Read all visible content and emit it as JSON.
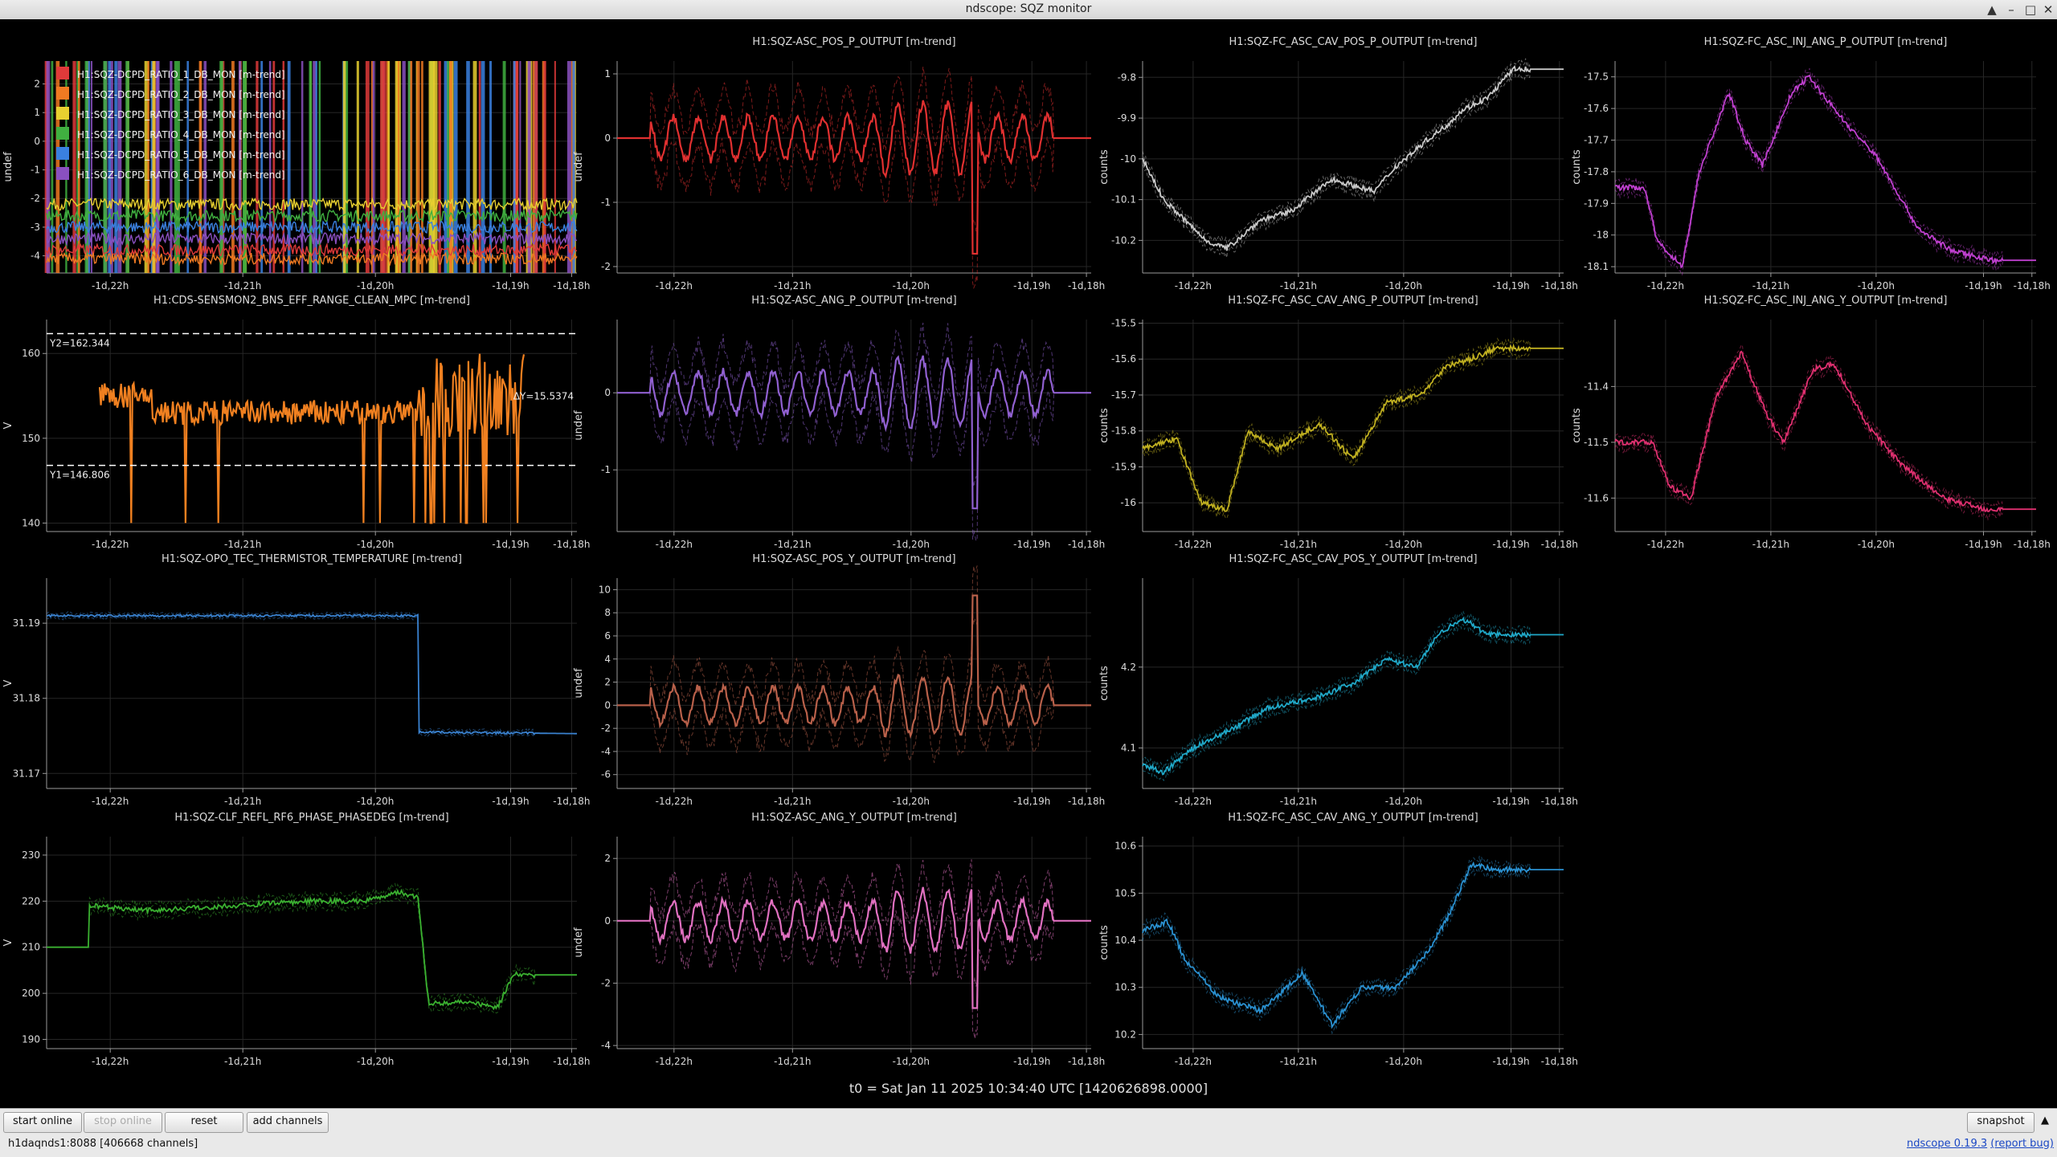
{
  "window": {
    "title": "ndscope: SQZ monitor"
  },
  "window_controls": [
    "▲",
    "–",
    "□",
    "✕"
  ],
  "t0_label": "t0 = Sat Jan 11 2025 10:34:40 UTC [1420626898.0000]",
  "x_ticks": [
    "-1d,22h",
    "-1d,21h",
    "-1d,20h",
    "-1d,19h",
    "-1d,18h"
  ],
  "toolbar": {
    "start_online": "start online",
    "stop_online": "stop online",
    "reset": "reset",
    "add_channels": "add channels",
    "snapshot": "snapshot",
    "expand_arrow": "▲"
  },
  "status": {
    "server": "h1daqnds1:8088  [406668 channels]"
  },
  "version": {
    "app": "ndscope 0.19.3",
    "report": "(report bug)"
  },
  "colors": {
    "background": "#000000",
    "grid": "#262626",
    "axis": "#9a9a9a",
    "text": "#dcdcdc"
  },
  "plots": [
    {
      "id": "dcpd",
      "title": "",
      "ylabel": "undef",
      "ylim": [
        -4.6,
        2.8
      ],
      "yticks": [
        2,
        1,
        0,
        -1,
        -2,
        -3,
        -4
      ],
      "shape": "dcpd",
      "color": "#e8e8e8",
      "legend": [
        {
          "name": "H1:SQZ-DCPD_RATIO_1_DB_MON [m-trend]",
          "color": "#e03a3a"
        },
        {
          "name": "H1:SQZ-DCPD_RATIO_2_DB_MON [m-trend]",
          "color": "#f07a22"
        },
        {
          "name": "H1:SQZ-DCPD_RATIO_3_DB_MON [m-trend]",
          "color": "#e8d030"
        },
        {
          "name": "H1:SQZ-DCPD_RATIO_4_DB_MON [m-trend]",
          "color": "#40b040"
        },
        {
          "name": "H1:SQZ-DCPD_RATIO_5_DB_MON [m-trend]",
          "color": "#3a80e0"
        },
        {
          "name": "H1:SQZ-DCPD_RATIO_6_DB_MON [m-trend]",
          "color": "#8a50c0"
        }
      ]
    },
    {
      "id": "asc-pos-p",
      "title": "H1:SQZ-ASC_POS_P_OUTPUT [m-trend]",
      "ylabel": "undef",
      "ylim": [
        -2.1,
        1.2
      ],
      "yticks": [
        1,
        0,
        -1,
        -2
      ],
      "shape": "osc",
      "color": "#e03030",
      "base": 0,
      "amp": 0.55,
      "spike": -1.8
    },
    {
      "id": "fc-cav-pos-p",
      "title": "H1:SQZ-FC_ASC_CAV_POS_P_OUTPUT [m-trend]",
      "ylabel": "counts",
      "ylim": [
        -10.28,
        -9.76
      ],
      "yticks": [
        -9.8,
        -9.9,
        -10,
        -10.1,
        -10.2
      ],
      "shape": "walk",
      "color": "#c8c8c8",
      "pts": [
        [
          0,
          -10.0
        ],
        [
          0.05,
          -10.1
        ],
        [
          0.15,
          -10.2
        ],
        [
          0.2,
          -10.22
        ],
        [
          0.28,
          -10.15
        ],
        [
          0.35,
          -10.13
        ],
        [
          0.45,
          -10.05
        ],
        [
          0.55,
          -10.08
        ],
        [
          0.6,
          -10.02
        ],
        [
          0.68,
          -9.95
        ],
        [
          0.72,
          -9.92
        ],
        [
          0.76,
          -9.88
        ],
        [
          0.82,
          -9.85
        ],
        [
          0.88,
          -9.78
        ],
        [
          1,
          -9.78
        ]
      ]
    },
    {
      "id": "fc-inj-ang-p",
      "title": "H1:SQZ-FC_ASC_INJ_ANG_P_OUTPUT [m-trend]",
      "ylabel": "counts",
      "ylim": [
        -18.12,
        -17.45
      ],
      "yticks": [
        -17.5,
        -17.6,
        -17.7,
        -17.8,
        -17.9,
        -18,
        -18.1
      ],
      "shape": "walk",
      "color": "#c040d0",
      "pts": [
        [
          0,
          -17.85
        ],
        [
          0.07,
          -17.85
        ],
        [
          0.1,
          -18.02
        ],
        [
          0.16,
          -18.1
        ],
        [
          0.2,
          -17.8
        ],
        [
          0.27,
          -17.55
        ],
        [
          0.31,
          -17.7
        ],
        [
          0.35,
          -17.78
        ],
        [
          0.42,
          -17.55
        ],
        [
          0.46,
          -17.5
        ],
        [
          0.55,
          -17.65
        ],
        [
          0.62,
          -17.75
        ],
        [
          0.72,
          -17.98
        ],
        [
          0.8,
          -18.05
        ],
        [
          0.9,
          -18.08
        ],
        [
          1,
          -18.08
        ]
      ]
    },
    {
      "id": "bns-range",
      "title": "H1:CDS-SENSMON2_BNS_EFF_RANGE_CLEAN_MPC [m-trend]",
      "ylabel": "V",
      "ylim": [
        139,
        164
      ],
      "yticks": [
        160,
        150,
        140
      ],
      "shape": "bns",
      "color": "#f08020",
      "cursors": {
        "y1": 146.806,
        "y2": 162.344,
        "y1_label": "Y1=146.806",
        "y2_label": "Y2=162.344",
        "dy_label": "ΔY=15.5374"
      }
    },
    {
      "id": "asc-ang-p",
      "title": "H1:SQZ-ASC_ANG_P_OUTPUT [m-trend]",
      "ylabel": "undef",
      "ylim": [
        -1.8,
        0.95
      ],
      "yticks": [
        0,
        -1
      ],
      "shape": "osc",
      "color": "#9060d0",
      "base": 0,
      "amp": 0.45,
      "spike": -1.5
    },
    {
      "id": "fc-cav-ang-p",
      "title": "H1:SQZ-FC_ASC_CAV_ANG_P_OUTPUT [m-trend]",
      "ylabel": "counts",
      "ylim": [
        -16.08,
        -15.49
      ],
      "yticks": [
        -15.5,
        -15.6,
        -15.7,
        -15.8,
        -15.9,
        -16
      ],
      "shape": "walk",
      "color": "#c0b020",
      "pts": [
        [
          0,
          -15.85
        ],
        [
          0.08,
          -15.82
        ],
        [
          0.14,
          -16.0
        ],
        [
          0.2,
          -16.02
        ],
        [
          0.25,
          -15.8
        ],
        [
          0.32,
          -15.85
        ],
        [
          0.42,
          -15.78
        ],
        [
          0.5,
          -15.88
        ],
        [
          0.58,
          -15.72
        ],
        [
          0.66,
          -15.7
        ],
        [
          0.72,
          -15.62
        ],
        [
          0.78,
          -15.6
        ],
        [
          0.84,
          -15.57
        ],
        [
          1,
          -15.57
        ]
      ]
    },
    {
      "id": "fc-inj-ang-y",
      "title": "H1:SQZ-FC_ASC_INJ_ANG_Y_OUTPUT [m-trend]",
      "ylabel": "counts",
      "ylim": [
        -11.66,
        -11.28
      ],
      "yticks": [
        -11.4,
        -11.5,
        -11.6
      ],
      "shape": "walk",
      "color": "#e03070",
      "pts": [
        [
          0,
          -11.5
        ],
        [
          0.09,
          -11.5
        ],
        [
          0.13,
          -11.58
        ],
        [
          0.18,
          -11.6
        ],
        [
          0.24,
          -11.42
        ],
        [
          0.3,
          -11.34
        ],
        [
          0.36,
          -11.45
        ],
        [
          0.4,
          -11.5
        ],
        [
          0.47,
          -11.37
        ],
        [
          0.52,
          -11.36
        ],
        [
          0.6,
          -11.47
        ],
        [
          0.68,
          -11.54
        ],
        [
          0.78,
          -11.6
        ],
        [
          0.88,
          -11.62
        ],
        [
          1,
          -11.62
        ]
      ]
    },
    {
      "id": "opo-tec",
      "title": "H1:SQZ-OPO_TEC_THERMISTOR_TEMPERATURE [m-trend]",
      "ylabel": "V",
      "ylim": [
        31.168,
        31.196
      ],
      "yticks": [
        31.19,
        31.18,
        31.17
      ],
      "shape": "step",
      "color": "#3a82d0",
      "pts": [
        [
          0,
          31.191
        ],
        [
          0.7,
          31.191
        ],
        [
          0.7,
          31.1755
        ],
        [
          1,
          31.1753
        ]
      ]
    },
    {
      "id": "asc-pos-y",
      "title": "H1:SQZ-ASC_POS_Y_OUTPUT [m-trend]",
      "ylabel": "undef",
      "ylim": [
        -7.2,
        11
      ],
      "yticks": [
        10,
        8,
        6,
        4,
        2,
        0,
        -2,
        -4,
        -6
      ],
      "shape": "osc",
      "color": "#b8604a",
      "base": 0,
      "amp": 2.6,
      "spike": 9.5
    },
    {
      "id": "fc-cav-pos-y",
      "title": "H1:SQZ-FC_ASC_CAV_POS_Y_OUTPUT [m-trend]",
      "ylabel": "counts",
      "ylim": [
        4.05,
        4.31
      ],
      "yticks": [
        4.2,
        4.1
      ],
      "shape": "walk",
      "color": "#20a8c8",
      "pts": [
        [
          0,
          4.08
        ],
        [
          0.05,
          4.07
        ],
        [
          0.12,
          4.1
        ],
        [
          0.2,
          4.12
        ],
        [
          0.3,
          4.15
        ],
        [
          0.4,
          4.16
        ],
        [
          0.5,
          4.18
        ],
        [
          0.58,
          4.21
        ],
        [
          0.65,
          4.2
        ],
        [
          0.7,
          4.24
        ],
        [
          0.76,
          4.26
        ],
        [
          0.82,
          4.24
        ],
        [
          0.88,
          4.24
        ],
        [
          1,
          4.24
        ]
      ]
    },
    {
      "id": "clf-refl",
      "title": "H1:SQZ-CLF_REFL_RF6_PHASE_PHASEDEG [m-trend]",
      "ylabel": "V",
      "ylim": [
        188,
        234
      ],
      "yticks": [
        230,
        220,
        210,
        200,
        190
      ],
      "shape": "walk",
      "color": "#3ab030",
      "pts": [
        [
          0,
          210
        ],
        [
          0.08,
          210
        ],
        [
          0.08,
          219
        ],
        [
          0.2,
          218
        ],
        [
          0.35,
          219
        ],
        [
          0.5,
          220
        ],
        [
          0.6,
          220
        ],
        [
          0.66,
          222
        ],
        [
          0.7,
          221
        ],
        [
          0.72,
          198
        ],
        [
          0.8,
          198
        ],
        [
          0.85,
          197
        ],
        [
          0.88,
          204
        ],
        [
          1,
          204
        ]
      ]
    },
    {
      "id": "asc-ang-y",
      "title": "H1:SQZ-ASC_ANG_Y_OUTPUT [m-trend]",
      "ylabel": "undef",
      "ylim": [
        -4.1,
        2.7
      ],
      "yticks": [
        2,
        0,
        -2,
        -4
      ],
      "shape": "osc",
      "color": "#e070c0",
      "base": 0,
      "amp": 1.0,
      "spike": -2.8
    },
    {
      "id": "fc-cav-ang-y",
      "title": "H1:SQZ-FC_ASC_CAV_ANG_Y_OUTPUT [m-trend]",
      "ylabel": "counts",
      "ylim": [
        10.17,
        10.62
      ],
      "yticks": [
        10.6,
        10.5,
        10.4,
        10.3,
        10.2
      ],
      "shape": "walk",
      "color": "#2a90d0",
      "pts": [
        [
          0,
          10.42
        ],
        [
          0.06,
          10.44
        ],
        [
          0.1,
          10.36
        ],
        [
          0.18,
          10.28
        ],
        [
          0.28,
          10.25
        ],
        [
          0.38,
          10.33
        ],
        [
          0.45,
          10.22
        ],
        [
          0.52,
          10.3
        ],
        [
          0.6,
          10.3
        ],
        [
          0.68,
          10.38
        ],
        [
          0.72,
          10.44
        ],
        [
          0.78,
          10.56
        ],
        [
          0.84,
          10.55
        ],
        [
          1,
          10.55
        ]
      ]
    }
  ]
}
